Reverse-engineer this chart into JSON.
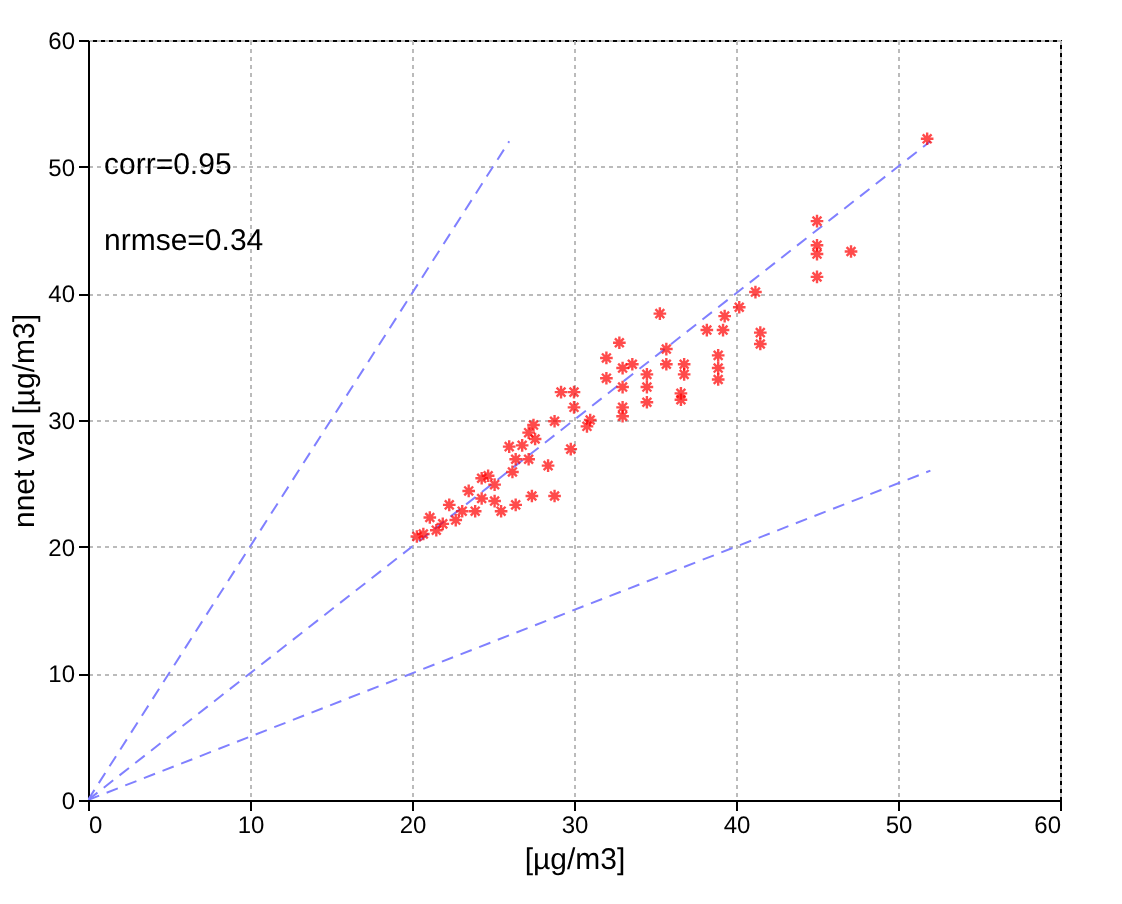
{
  "chart_data": {
    "type": "scatter",
    "xlabel": "[µg/m3]",
    "ylabel": "nnet val [µg/m3]",
    "xlim": [
      0,
      60
    ],
    "ylim": [
      0,
      60
    ],
    "xticks": [
      0,
      10,
      20,
      30,
      40,
      50,
      60
    ],
    "yticks": [
      0,
      10,
      20,
      30,
      40,
      50,
      60
    ],
    "grid": true,
    "marker": "cross",
    "annotations": [
      "corr=0.95",
      "nrmse=0.34"
    ],
    "series": [
      {
        "type": "line",
        "color": "#8080ff",
        "line_style": "dashed",
        "marker": "none",
        "x": [
          0,
          26
        ],
        "values": [
          0,
          52
        ]
      },
      {
        "type": "line",
        "color": "#8080ff",
        "line_style": "dashed",
        "marker": "none",
        "x": [
          0,
          52
        ],
        "values": [
          0,
          52
        ]
      },
      {
        "type": "line",
        "color": "#8080ff",
        "line_style": "dashed",
        "marker": "none",
        "x": [
          0,
          52
        ],
        "values": [
          0,
          26
        ]
      },
      {
        "color": "#ff0000",
        "x": [
          51.8,
          45.0,
          45.0,
          45.0,
          47.1,
          45.0,
          41.2,
          40.2,
          39.3,
          39.2,
          41.5,
          41.5,
          38.2,
          38.9,
          38.9,
          38.9,
          35.3,
          32.8,
          35.7,
          35.7,
          36.8,
          36.8,
          36.6,
          36.6,
          34.5,
          34.5,
          34.5,
          33.0,
          33.0,
          33.0,
          33.0,
          32.0,
          32.0,
          33.6,
          30.0,
          29.2,
          30.0,
          31.0,
          30.8,
          28.8,
          27.5,
          26.8,
          27.6,
          29.8,
          28.8,
          27.4,
          26.2,
          25.1,
          24.3,
          23.1,
          21.9,
          20.7,
          20.3,
          21.5,
          22.7,
          23.9,
          25.1,
          24.7,
          26.4,
          23.5,
          22.3,
          21.1,
          25.5,
          26.4,
          27.2,
          26.0,
          27.2,
          28.4,
          24.3
        ],
        "values": [
          52.2,
          45.7,
          43.8,
          43.1,
          43.3,
          41.3,
          40.1,
          38.9,
          38.2,
          37.1,
          36.9,
          36.0,
          37.1,
          35.1,
          34.1,
          33.2,
          38.4,
          36.1,
          35.6,
          34.4,
          34.4,
          33.6,
          32.1,
          31.6,
          33.6,
          32.6,
          31.4,
          34.1,
          32.6,
          31.0,
          30.3,
          34.9,
          33.3,
          34.4,
          32.2,
          32.2,
          31.0,
          30.0,
          29.5,
          29.9,
          29.6,
          28.0,
          28.5,
          27.7,
          24.0,
          24.0,
          25.9,
          24.9,
          23.8,
          22.8,
          21.8,
          21.0,
          20.8,
          21.3,
          22.1,
          22.8,
          23.6,
          25.6,
          26.9,
          24.4,
          23.3,
          22.3,
          22.8,
          23.3,
          26.9,
          27.9,
          29.0,
          26.4,
          25.4
        ]
      }
    ]
  }
}
